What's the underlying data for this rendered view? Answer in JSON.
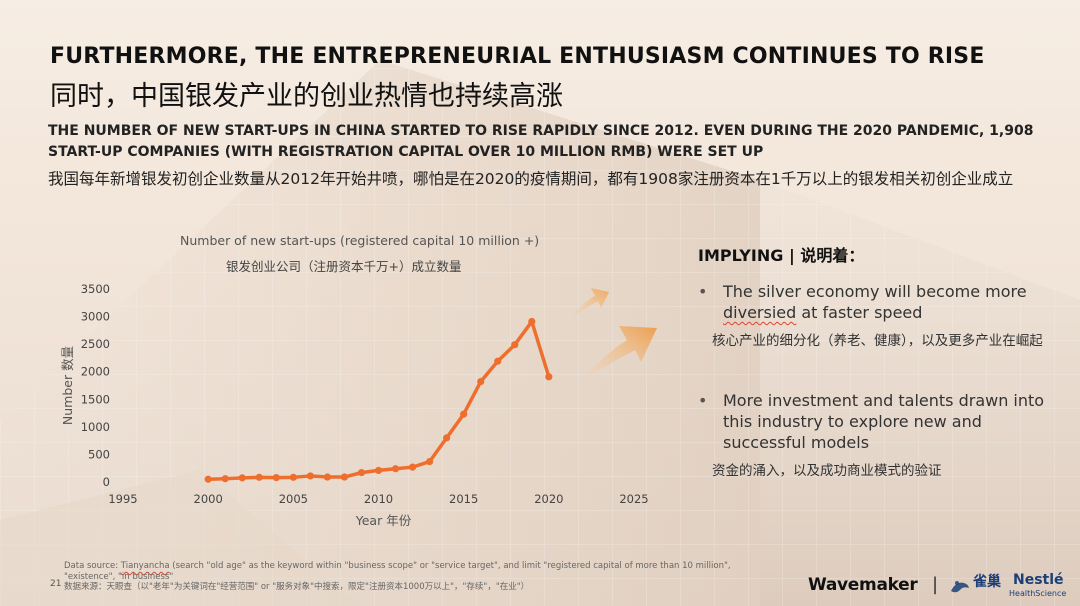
{
  "slide": {
    "title_en": "FURTHERMORE, THE ENTREPRENEURIAL ENTHUSIASM CONTINUES TO RISE",
    "title_zh": "同时，中国银发产业的创业热情也持续高涨",
    "subtitle_en": "THE NUMBER OF NEW START-UPS IN CHINA STARTED TO RISE RAPIDLY SINCE 2012. EVEN DURING THE 2020 PANDEMIC, 1,908 START-UP COMPANIES (WITH REGISTRATION CAPITAL OVER 10 MILLION RMB) WERE SET UP",
    "subtitle_zh": "我国每年新增银发初创企业数量从2012年开始井喷，哪怕是在2020的疫情期间，都有1908家注册资本在1千万以上的银发相关初创企业成立",
    "page_number": "21"
  },
  "chart_data": {
    "type": "line",
    "title": "Number of new start-ups (registered capital 10 million +)",
    "subtitle": "银发创业公司（注册资本千万+）成立数量",
    "xlabel": "Year 年份",
    "ylabel": "Number 数量",
    "xlim": [
      1995,
      2025
    ],
    "ylim": [
      0,
      3500
    ],
    "x_ticks": [
      1995,
      2000,
      2005,
      2010,
      2015,
      2020,
      2025
    ],
    "y_ticks": [
      0,
      500,
      1000,
      1500,
      2000,
      2500,
      3000,
      3500
    ],
    "grid": false,
    "series": [
      {
        "color": "#ee6f2d",
        "x": [
          2000,
          2001,
          2002,
          2003,
          2004,
          2005,
          2006,
          2007,
          2008,
          2009,
          2010,
          2011,
          2012,
          2013,
          2014,
          2015,
          2016,
          2017,
          2018,
          2019,
          2020
        ],
        "y": [
          50,
          60,
          75,
          85,
          80,
          85,
          110,
          90,
          90,
          170,
          210,
          240,
          270,
          370,
          800,
          1230,
          1820,
          2190,
          2490,
          2910,
          1908
        ]
      }
    ]
  },
  "implying": {
    "heading": "IMPLYING | 说明着：",
    "bullets": [
      {
        "marker": "•",
        "en_before": "The silver economy will become more ",
        "en_wavy": "diversied",
        "en_after": " at faster speed",
        "zh": "核心产业的细分化（养老、健康），以及更多产业在崛起"
      },
      {
        "marker": "•",
        "en_before": "More investment and talents drawn into this industry to explore new and successful models",
        "en_wavy": "",
        "en_after": "",
        "zh": "资金的涌入，以及成功商业模式的验证"
      }
    ]
  },
  "source": {
    "en_before": "Data source: ",
    "en_wavy": "Tianyancha",
    "en_after": " (search \"old age\" as the keyword  within \"business scope\" or \"service target\", and limit \"registered capital of more than 10 million\", \"existence\", \"in business\"",
    "zh": "数据来源：天眼查（以\"老年\"为关键词在\"经营范围\" or \"服务对象\"中搜索，限定\"注册资本1000万以上\"，\"存续\"，\"在业\"）"
  },
  "logos": {
    "wavemaker": "Wavemaker",
    "separator": "|",
    "quechao": "雀巢",
    "nestle": "Nestlé",
    "health_science": "HealthScience"
  },
  "colors": {
    "line": "#ee6f2d",
    "arrow": "#f0a55a",
    "background": "#f3e6da"
  }
}
